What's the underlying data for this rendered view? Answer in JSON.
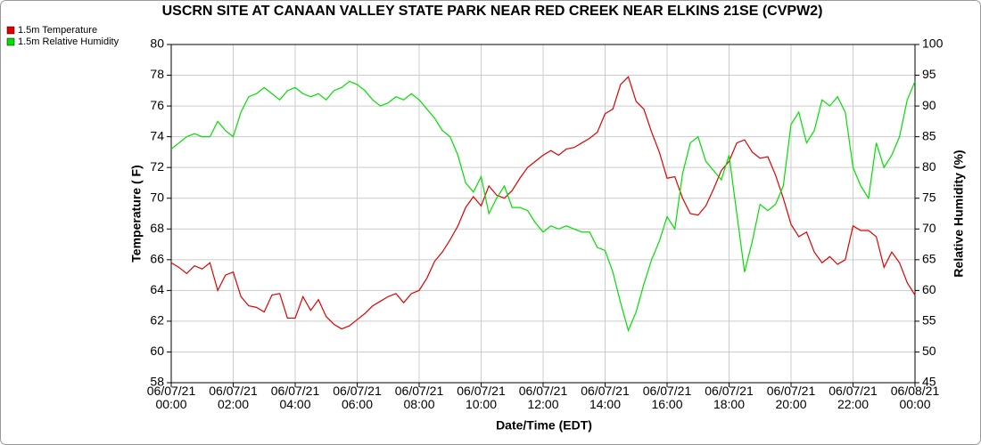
{
  "chart_data": {
    "type": "line",
    "title": "USCRN SITE AT CANAAN VALLEY STATE PARK NEAR RED CREEK NEAR ELKINS 21SE (CVPW2)",
    "xlabel": "Date/Time (EDT)",
    "ylabel": "Temperature ( F)",
    "y2label": "Relative Humidity (%)",
    "x": [
      "06/07/21 00:00",
      "06/07/21 00:15",
      "06/07/21 00:30",
      "06/07/21 00:45",
      "06/07/21 01:00",
      "06/07/21 01:15",
      "06/07/21 01:30",
      "06/07/21 01:45",
      "06/07/21 02:00",
      "06/07/21 02:15",
      "06/07/21 02:30",
      "06/07/21 02:45",
      "06/07/21 03:00",
      "06/07/21 03:15",
      "06/07/21 03:30",
      "06/07/21 03:45",
      "06/07/21 04:00",
      "06/07/21 04:15",
      "06/07/21 04:30",
      "06/07/21 04:45",
      "06/07/21 05:00",
      "06/07/21 05:15",
      "06/07/21 05:30",
      "06/07/21 05:45",
      "06/07/21 06:00",
      "06/07/21 06:15",
      "06/07/21 06:30",
      "06/07/21 06:45",
      "06/07/21 07:00",
      "06/07/21 07:15",
      "06/07/21 07:30",
      "06/07/21 07:45",
      "06/07/21 08:00",
      "06/07/21 08:15",
      "06/07/21 08:30",
      "06/07/21 08:45",
      "06/07/21 09:00",
      "06/07/21 09:15",
      "06/07/21 09:30",
      "06/07/21 09:45",
      "06/07/21 10:00",
      "06/07/21 10:15",
      "06/07/21 10:30",
      "06/07/21 10:45",
      "06/07/21 11:00",
      "06/07/21 11:15",
      "06/07/21 11:30",
      "06/07/21 11:45",
      "06/07/21 12:00",
      "06/07/21 12:15",
      "06/07/21 12:30",
      "06/07/21 12:45",
      "06/07/21 13:00",
      "06/07/21 13:15",
      "06/07/21 13:30",
      "06/07/21 13:45",
      "06/07/21 14:00",
      "06/07/21 14:15",
      "06/07/21 14:30",
      "06/07/21 14:45",
      "06/07/21 15:00",
      "06/07/21 15:15",
      "06/07/21 15:30",
      "06/07/21 15:45",
      "06/07/21 16:00",
      "06/07/21 16:15",
      "06/07/21 16:30",
      "06/07/21 16:45",
      "06/07/21 17:00",
      "06/07/21 17:15",
      "06/07/21 17:30",
      "06/07/21 17:45",
      "06/07/21 18:00",
      "06/07/21 18:15",
      "06/07/21 18:30",
      "06/07/21 18:45",
      "06/07/21 19:00",
      "06/07/21 19:15",
      "06/07/21 19:30",
      "06/07/21 19:45",
      "06/07/21 20:00",
      "06/07/21 20:15",
      "06/07/21 20:30",
      "06/07/21 20:45",
      "06/07/21 21:00",
      "06/07/21 21:15",
      "06/07/21 21:30",
      "06/07/21 21:45",
      "06/07/21 22:00",
      "06/07/21 22:15",
      "06/07/21 22:30",
      "06/07/21 22:45",
      "06/07/21 23:00",
      "06/07/21 23:15",
      "06/07/21 23:30",
      "06/07/21 23:45",
      "06/08/21 00:00"
    ],
    "series": [
      {
        "name": "1.5m Temperature",
        "color": "#e00000",
        "values": [
          65.8,
          65.5,
          65.1,
          65.6,
          65.4,
          65.8,
          64.0,
          65.0,
          65.2,
          63.6,
          63.0,
          62.9,
          62.6,
          63.7,
          63.8,
          62.2,
          62.2,
          63.6,
          62.7,
          63.4,
          62.3,
          61.8,
          61.5,
          61.7,
          62.1,
          62.5,
          63.0,
          63.3,
          63.6,
          63.8,
          63.2,
          63.8,
          64.0,
          64.8,
          65.9,
          66.5,
          67.3,
          68.2,
          69.4,
          70.1,
          69.5,
          70.8,
          70.2,
          70.0,
          70.5,
          71.3,
          72.0,
          72.4,
          72.8,
          73.1,
          72.8,
          73.2,
          73.3,
          73.6,
          73.9,
          74.3,
          75.5,
          75.8,
          77.4,
          77.9,
          76.3,
          75.8,
          74.3,
          73.0,
          71.3,
          71.4,
          70.0,
          69.0,
          68.9,
          69.5,
          70.6,
          71.8,
          72.4,
          73.6,
          73.8,
          73.0,
          72.6,
          72.7,
          71.5,
          70.0,
          68.3,
          67.5,
          67.8,
          66.5,
          65.8,
          66.2,
          65.7,
          66.0,
          68.2,
          67.9,
          67.9,
          67.5,
          65.5,
          66.5,
          65.8,
          64.5,
          63.7
        ]
      },
      {
        "name": "1.5m Relative Humidity",
        "color": "#00e000",
        "axis": "y2",
        "values": [
          83,
          84,
          85,
          85.5,
          85,
          85,
          87.5,
          86,
          85,
          89,
          91.5,
          92,
          93,
          92,
          91,
          92.5,
          93,
          92,
          91.5,
          92,
          91,
          92.5,
          93,
          94,
          93.5,
          92.5,
          91,
          90,
          90.5,
          91.5,
          91,
          92,
          91,
          89.5,
          88,
          86,
          85,
          82,
          77.5,
          76,
          78.5,
          72.5,
          75,
          77,
          73.5,
          73.5,
          73,
          71,
          69.5,
          70.5,
          70,
          70.5,
          70,
          69.5,
          69.5,
          67,
          66.5,
          63,
          58,
          53.5,
          56.5,
          61,
          65,
          68,
          72,
          70,
          79,
          84,
          85,
          81,
          79.5,
          78,
          82,
          72.5,
          63,
          68,
          74,
          73,
          74,
          77,
          87,
          89,
          84,
          86,
          91,
          90,
          91.5,
          89,
          80,
          77,
          75,
          84,
          80,
          82,
          85,
          91,
          94
        ]
      }
    ],
    "xlim": [
      "06/07/21 00:00",
      "06/08/21 00:00"
    ],
    "xticks": [
      "06/07/21 00:00",
      "06/07/21 02:00",
      "06/07/21 04:00",
      "06/07/21 06:00",
      "06/07/21 08:00",
      "06/07/21 10:00",
      "06/07/21 12:00",
      "06/07/21 14:00",
      "06/07/21 16:00",
      "06/07/21 18:00",
      "06/07/21 20:00",
      "06/07/21 22:00",
      "06/08/21 00:00"
    ],
    "ylim": [
      58,
      80
    ],
    "yticks": [
      58,
      60,
      62,
      64,
      66,
      68,
      70,
      72,
      74,
      76,
      78,
      80
    ],
    "y2lim": [
      45,
      100
    ],
    "y2ticks": [
      45,
      50,
      55,
      60,
      65,
      70,
      75,
      80,
      85,
      90,
      95,
      100
    ],
    "grid": true,
    "legend": "top-left"
  }
}
